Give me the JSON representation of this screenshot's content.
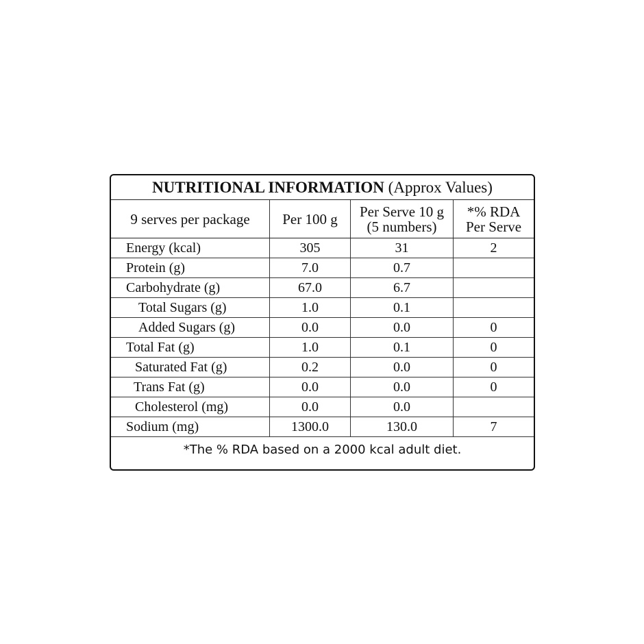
{
  "title": {
    "bold": "NUTRITIONAL INFORMATION",
    "normal": "(Approx Values)"
  },
  "headers": {
    "c1": "9 serves per package",
    "c2": "Per 100 g",
    "c3a": "Per Serve 10 g",
    "c3b": "(5 numbers)",
    "c4a": "*% RDA",
    "c4b": "Per Serve"
  },
  "rows": [
    {
      "label": "Energy (kcal)",
      "per100": "305",
      "perServe": "31",
      "rda": "2"
    },
    {
      "label": "Protein (g)",
      "per100": "7.0",
      "perServe": "0.7",
      "rda": ""
    },
    {
      "label": "Carbohydrate (g)",
      "per100": "67.0",
      "perServe": "6.7",
      "rda": ""
    },
    {
      "label": "Total Sugars (g)",
      "per100": "1.0",
      "perServe": "0.1",
      "rda": ""
    },
    {
      "label": "Added Sugars (g)",
      "per100": "0.0",
      "perServe": "0.0",
      "rda": "0"
    },
    {
      "label": "Total Fat (g)",
      "per100": "1.0",
      "perServe": "0.1",
      "rda": "0"
    },
    {
      "label": "Saturated Fat (g)",
      "per100": "0.2",
      "perServe": "0.0",
      "rda": "0"
    },
    {
      "label": "Trans Fat (g)",
      "per100": "0.0",
      "perServe": "0.0",
      "rda": "0"
    },
    {
      "label": "Cholesterol (mg)",
      "per100": "0.0",
      "perServe": "0.0",
      "rda": ""
    },
    {
      "label": "Sodium (mg)",
      "per100": "1300.0",
      "perServe": "130.0",
      "rda": "7"
    }
  ],
  "footer": "*The % RDA based on a 2000 kcal adult diet."
}
